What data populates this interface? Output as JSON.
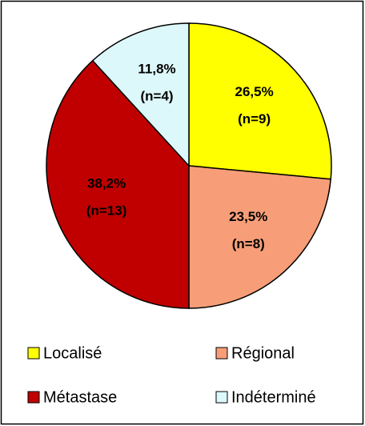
{
  "chart_data": {
    "type": "pie",
    "categories": [
      "Localisé",
      "Régional",
      "Métastase",
      "Indéterminé"
    ],
    "values": [
      26.5,
      23.5,
      38.2,
      11.8
    ],
    "value_labels": [
      "26,5%",
      "23,5%",
      "38,2%",
      "11,8%"
    ],
    "count_labels": [
      "(n=9)",
      "(n=8)",
      "(n=13)",
      "(n=4)"
    ],
    "colors": [
      "#ffff00",
      "#f79e78",
      "#c00000",
      "#ddf8fa"
    ],
    "label_colors": [
      "#000000",
      "#000000",
      "#000000",
      "#000000"
    ],
    "legend": "bottom"
  }
}
